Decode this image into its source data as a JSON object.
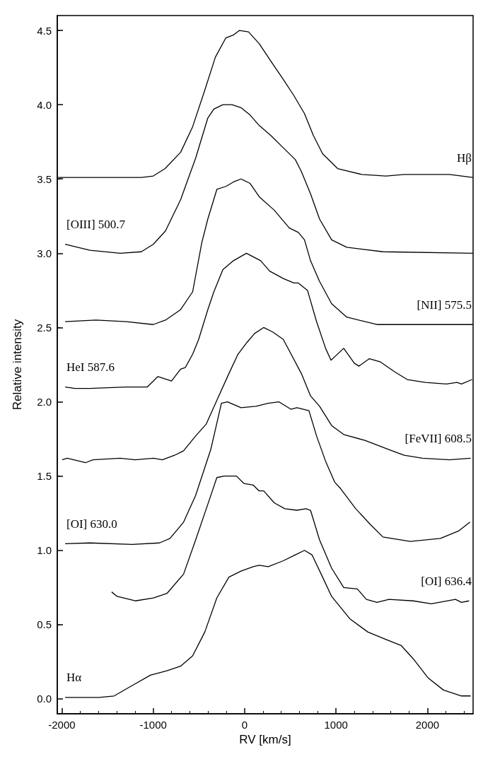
{
  "chart_data": {
    "type": "line",
    "xlabel": "RV [km/s]",
    "ylabel": "Relative intensity",
    "xlim": [
      -2050,
      2500
    ],
    "xticks": [
      -2000,
      -1000,
      0,
      1000,
      2000
    ],
    "ylim": [
      -0.1,
      4.6
    ],
    "yticks": [
      {
        "value": 0,
        "label": "0.0"
      },
      0.5,
      {
        "value": 1,
        "label": "1.0"
      },
      1.5,
      {
        "value": 2,
        "label": "2.0"
      },
      2.5,
      {
        "value": 3,
        "label": "3.0"
      },
      3.5,
      {
        "value": 4,
        "label": "4.0"
      },
      4.5
    ],
    "grid": false,
    "marker": "none",
    "line_style": "solid",
    "series": [
      {
        "name": "Hβ",
        "color": "#000000",
        "x": [
          -2040,
          -1130,
          -1000,
          -870,
          -700,
          -570,
          -440,
          -320,
          -205,
          -120,
          -56,
          43,
          160,
          290,
          423,
          540,
          655,
          754,
          853,
          1018,
          1283,
          1547,
          1745,
          2241,
          2499
        ],
        "values": [
          3.51,
          3.51,
          3.52,
          3.57,
          3.68,
          3.85,
          4.09,
          4.32,
          4.45,
          4.47,
          4.5,
          4.49,
          4.41,
          4.29,
          4.17,
          4.06,
          3.94,
          3.79,
          3.67,
          3.57,
          3.53,
          3.52,
          3.53,
          3.53,
          3.51
        ]
      },
      {
        "name": "[OIII] 500.7",
        "color": "#000000",
        "x": [
          -1964,
          -1693,
          -1362,
          -1131,
          -1000,
          -866,
          -701,
          -536,
          -403,
          -337,
          -238,
          -139,
          -40,
          60,
          160,
          291,
          423,
          555,
          621,
          721,
          820,
          952,
          1117,
          1514,
          2499
        ],
        "values": [
          3.06,
          3.02,
          3.0,
          3.01,
          3.06,
          3.15,
          3.36,
          3.64,
          3.91,
          3.97,
          4.0,
          4.0,
          3.98,
          3.93,
          3.86,
          3.79,
          3.71,
          3.63,
          3.55,
          3.4,
          3.23,
          3.09,
          3.04,
          3.01,
          3.0
        ]
      },
      {
        "name": "[NII] 575.5",
        "color": "#000000",
        "x": [
          -1964,
          -1627,
          -1296,
          -1000,
          -866,
          -701,
          -569,
          -469,
          -403,
          -304,
          -205,
          -122,
          -40,
          60,
          160,
          324,
          489,
          588,
          655,
          721,
          820,
          952,
          1117,
          1448,
          2499
        ],
        "values": [
          2.54,
          2.55,
          2.54,
          2.52,
          2.55,
          2.62,
          2.74,
          3.07,
          3.23,
          3.43,
          3.45,
          3.48,
          3.5,
          3.47,
          3.38,
          3.29,
          3.17,
          3.14,
          3.09,
          2.95,
          2.81,
          2.66,
          2.57,
          2.52,
          2.52
        ]
      },
      {
        "name": "HeI 587.6",
        "color": "#000000",
        "x": [
          -1964,
          -1858,
          -1693,
          -1296,
          -1064,
          -949,
          -800,
          -701,
          -650,
          -569,
          -503,
          -403,
          -337,
          -238,
          -122,
          20,
          175,
          274,
          423,
          539,
          588,
          688,
          787,
          886,
          945,
          1084,
          1200,
          1250,
          1365,
          1481,
          1646,
          1779,
          1977,
          2208,
          2324,
          2373,
          2489
        ],
        "values": [
          2.1,
          2.09,
          2.09,
          2.1,
          2.1,
          2.17,
          2.14,
          2.22,
          2.23,
          2.32,
          2.42,
          2.62,
          2.74,
          2.89,
          2.95,
          3.0,
          2.95,
          2.88,
          2.83,
          2.8,
          2.8,
          2.75,
          2.54,
          2.36,
          2.28,
          2.36,
          2.26,
          2.24,
          2.29,
          2.27,
          2.2,
          2.15,
          2.13,
          2.12,
          2.13,
          2.12,
          2.15
        ]
      },
      {
        "name": "[FeVII] 608.5",
        "color": "#000000",
        "x": [
          -1997,
          -1940,
          -1742,
          -1660,
          -1362,
          -1197,
          -998,
          -900,
          -767,
          -668,
          -536,
          -420,
          -304,
          -172,
          -73,
          26,
          109,
          208,
          307,
          423,
          621,
          721,
          820,
          952,
          1084,
          1316,
          1613,
          1745,
          1944,
          2241,
          2473
        ],
        "values": [
          1.61,
          1.62,
          1.59,
          1.61,
          1.62,
          1.61,
          1.62,
          1.61,
          1.64,
          1.67,
          1.77,
          1.85,
          2.01,
          2.19,
          2.32,
          2.4,
          2.46,
          2.5,
          2.47,
          2.42,
          2.19,
          2.04,
          1.97,
          1.84,
          1.78,
          1.74,
          1.67,
          1.64,
          1.62,
          1.61,
          1.62
        ]
      },
      {
        "name": "[OI] 630.0",
        "color": "#000000",
        "x": [
          -1964,
          -1693,
          -1230,
          -932,
          -817,
          -668,
          -536,
          -370,
          -254,
          -188,
          -40,
          126,
          258,
          373,
          506,
          572,
          704,
          787,
          886,
          985,
          1051,
          1216,
          1382,
          1514,
          1812,
          2142,
          2340,
          2466
        ],
        "values": [
          1.045,
          1.05,
          1.04,
          1.05,
          1.08,
          1.19,
          1.37,
          1.68,
          1.99,
          2.0,
          1.96,
          1.97,
          1.99,
          2.0,
          1.95,
          1.96,
          1.94,
          1.77,
          1.6,
          1.46,
          1.415,
          1.28,
          1.17,
          1.09,
          1.06,
          1.08,
          1.13,
          1.19
        ]
      },
      {
        "name": "[OI] 636.4",
        "color": "#000000",
        "x": [
          -1455,
          -1395,
          -1197,
          -998,
          -850,
          -668,
          -536,
          -403,
          -304,
          -221,
          -89,
          -7,
          93,
          159,
          209,
          324,
          440,
          572,
          671,
          721,
          820,
          952,
          1084,
          1233,
          1332,
          1448,
          1580,
          1845,
          2043,
          2307,
          2373,
          2456
        ],
        "values": [
          0.72,
          0.69,
          0.66,
          0.68,
          0.71,
          0.84,
          1.07,
          1.31,
          1.49,
          1.5,
          1.5,
          1.45,
          1.44,
          1.4,
          1.4,
          1.32,
          1.28,
          1.27,
          1.28,
          1.27,
          1.07,
          0.88,
          0.75,
          0.74,
          0.67,
          0.65,
          0.67,
          0.66,
          0.64,
          0.67,
          0.65,
          0.66
        ]
      },
      {
        "name": "Hα",
        "color": "#000000",
        "x": [
          -1964,
          -1593,
          -1428,
          -1230,
          -1031,
          -850,
          -701,
          -569,
          -436,
          -304,
          -172,
          -40,
          93,
          159,
          258,
          423,
          555,
          655,
          737,
          853,
          952,
          1150,
          1349,
          1547,
          1712,
          1845,
          2010,
          2175,
          2373,
          2473
        ],
        "values": [
          0.01,
          0.01,
          0.02,
          0.09,
          0.16,
          0.19,
          0.22,
          0.29,
          0.45,
          0.68,
          0.82,
          0.86,
          0.89,
          0.9,
          0.89,
          0.93,
          0.97,
          1.0,
          0.97,
          0.82,
          0.69,
          0.54,
          0.45,
          0.4,
          0.36,
          0.27,
          0.14,
          0.06,
          0.02,
          0.02
        ]
      }
    ]
  }
}
